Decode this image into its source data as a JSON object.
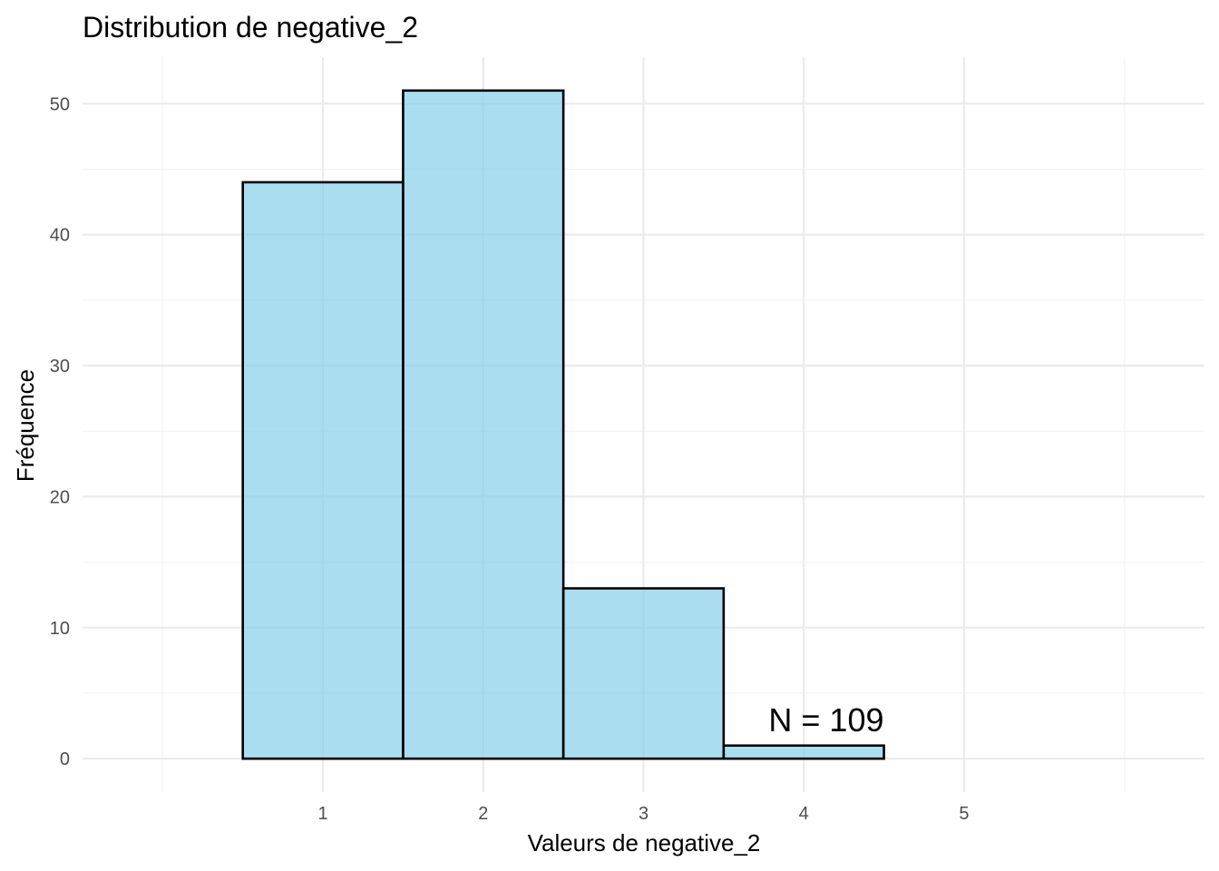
{
  "chart_data": {
    "type": "bar",
    "title": "Distribution de negative_2",
    "xlabel": "Valeurs de negative_2",
    "ylabel": "Fréquence",
    "bins": [
      {
        "start": 0.5,
        "end": 1.5,
        "count": 44
      },
      {
        "start": 1.5,
        "end": 2.5,
        "count": 51
      },
      {
        "start": 2.5,
        "end": 3.5,
        "count": 13
      },
      {
        "start": 3.5,
        "end": 4.5,
        "count": 1
      },
      {
        "start": 4.5,
        "end": 5.5,
        "count": 0
      }
    ],
    "x_ticks": [
      1,
      2,
      3,
      4,
      5
    ],
    "y_ticks": [
      0,
      10,
      20,
      30,
      40,
      50
    ],
    "xlim": [
      -0.5,
      6.5
    ],
    "ylim": [
      -2.55,
      53.55
    ],
    "grid": true,
    "legend": "none",
    "annotation": {
      "text": "N = 109",
      "x": 4.14,
      "y": 3
    },
    "colors": {
      "bar_fill": "#87CEEB",
      "bar_fill_opacity": 0.7,
      "bar_outline": "#000000",
      "grid_major": "#ebebeb",
      "grid_minor": "#f3f3f3",
      "tick_text": "#4d4d4d"
    }
  }
}
